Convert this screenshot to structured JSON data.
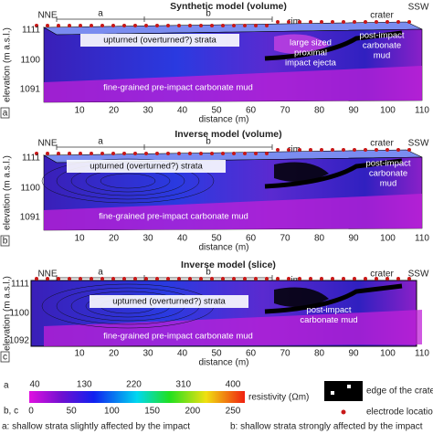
{
  "panels": [
    {
      "letter": "a",
      "title": "Synthetic model (volume)",
      "ylabel": "elevation (m a.s.l.)",
      "yticks": [
        "1111",
        "1100",
        "1091"
      ],
      "xlabel": "distance (m)",
      "xticks": [
        "10",
        "20",
        "30",
        "40",
        "50",
        "60",
        "70",
        "80",
        "90",
        "100",
        "110"
      ],
      "left": "NNE",
      "right": "SSW",
      "segments": [
        "a",
        "b",
        "rim",
        "crater"
      ],
      "annotations": [
        [
          "upturned (overturned?) strata"
        ],
        [
          "large sized",
          "proximal",
          "impact ejecta"
        ],
        [
          "post-impact",
          "carbonate",
          "mud"
        ],
        [
          "fine-grained pre-impact carbonate mud"
        ]
      ]
    },
    {
      "letter": "b",
      "title": "Inverse model (volume)",
      "ylabel": "elevation (m a.s.l.)",
      "yticks": [
        "1111",
        "1100",
        "1091"
      ],
      "xlabel": "distance (m)",
      "xticks": [
        "10",
        "20",
        "30",
        "40",
        "50",
        "60",
        "70",
        "80",
        "90",
        "100",
        "110"
      ],
      "left": "NNE",
      "right": "SSW",
      "segments": [
        "a",
        "b",
        "rim",
        "crater"
      ],
      "annotations": [
        [
          "upturned (overturned?) strata"
        ],
        [
          "post-impact",
          "carbonate",
          "mud"
        ],
        [
          "fine-grained pre-impact carbonate mud"
        ]
      ]
    },
    {
      "letter": "c",
      "title": "Inverse model (slice)",
      "ylabel": "elevation (m a.s.l.)",
      "yticks": [
        "1111",
        "1100",
        "1092"
      ],
      "xlabel": "distance (m)",
      "xticks": [
        "10",
        "20",
        "30",
        "40",
        "50",
        "60",
        "70",
        "80",
        "90",
        "100",
        "110"
      ],
      "left": "NNE",
      "right": "SSW",
      "segments": [
        "a",
        "b",
        "rim",
        "crater"
      ],
      "annotations": [
        [
          "upturned (overturned?) strata"
        ],
        [
          "post-impact",
          "carbonate mud"
        ],
        [
          "fine-grained pre-impact carbonate mud"
        ]
      ]
    }
  ],
  "colorbar": {
    "label_a": "a",
    "label_bc": "b, c",
    "ticks_a": [
      "40",
      "130",
      "220",
      "310",
      "400"
    ],
    "ticks_bc": [
      "0",
      "50",
      "100",
      "150",
      "200",
      "250"
    ],
    "title": "resistivity (Ωm)"
  },
  "legend": {
    "crater_edge": "edge of the crater",
    "electrode": "electrode location"
  },
  "footer": {
    "a": "a: shallow strata slightly affected by the impact",
    "b": "b: shallow strata strongly affected by the impact"
  }
}
